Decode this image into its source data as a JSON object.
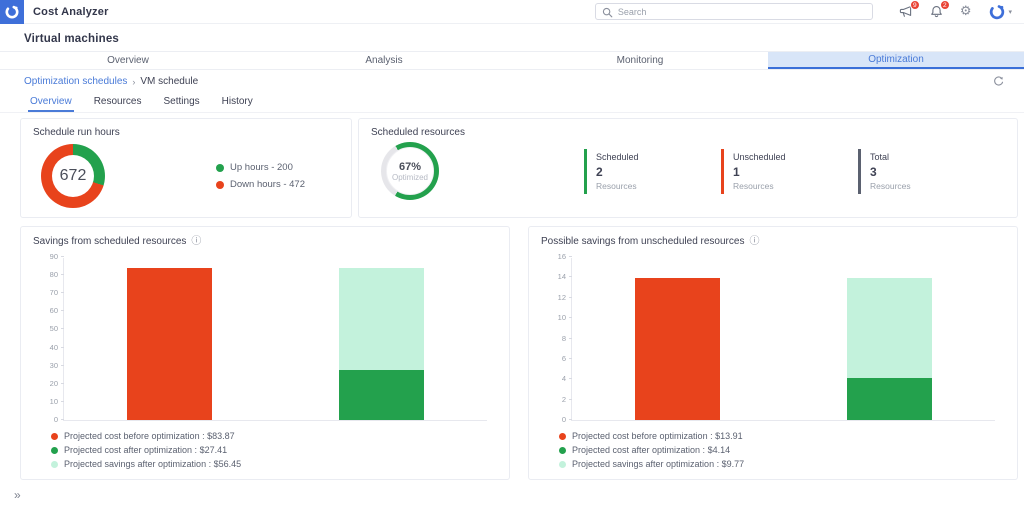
{
  "header": {
    "app_title": "Cost Analyzer",
    "search_placeholder": "Search",
    "badges": {
      "announcements": "9",
      "notifications": "2"
    }
  },
  "page_title": "Virtual machines",
  "main_tabs": [
    {
      "label": "Overview",
      "active": false
    },
    {
      "label": "Analysis",
      "active": false
    },
    {
      "label": "Monitoring",
      "active": false
    },
    {
      "label": "Optimization",
      "active": true
    }
  ],
  "breadcrumb": {
    "parent": "Optimization schedules",
    "separator": "›",
    "current": "VM schedule"
  },
  "sub_tabs": [
    {
      "label": "Overview",
      "active": true
    },
    {
      "label": "Resources",
      "active": false
    },
    {
      "label": "Settings",
      "active": false
    },
    {
      "label": "History",
      "active": false
    }
  ],
  "schedule_run_hours": {
    "title": "Schedule run hours",
    "total_hours": "672",
    "up_hours": 200,
    "down_hours": 472,
    "legend": [
      {
        "label": "Up hours - 200",
        "color": "#23a14d"
      },
      {
        "label": "Down hours - 472",
        "color": "#e8431c"
      }
    ]
  },
  "scheduled_resources": {
    "title": "Scheduled resources",
    "optimized_percent": 67,
    "percent_text": "67%",
    "percent_caption": "Optimized",
    "stats": [
      {
        "label": "Scheduled",
        "value": "2",
        "caption": "Resources",
        "color": "#23a14d"
      },
      {
        "label": "Unscheduled",
        "value": "1",
        "caption": "Resources",
        "color": "#e8431c"
      },
      {
        "label": "Total",
        "value": "3",
        "caption": "Resources",
        "color": "#5b6170"
      }
    ]
  },
  "chart_data": [
    {
      "type": "bar",
      "stacked": true,
      "title": "Savings from scheduled resources",
      "categories": [
        "",
        ""
      ],
      "series": [
        {
          "name": "Projected cost before optimization",
          "color": "#e8431c",
          "values": [
            83.87,
            0
          ]
        },
        {
          "name": "Projected cost after optimization",
          "color": "#23a14d",
          "values": [
            0,
            27.41
          ]
        },
        {
          "name": "Projected savings after optimization",
          "color": "#c3f2dc",
          "values": [
            0,
            56.45
          ]
        }
      ],
      "legend": [
        {
          "label": "Projected cost before optimization : $83.87",
          "color": "#e8431c"
        },
        {
          "label": "Projected cost after optimization : $27.41",
          "color": "#23a14d"
        },
        {
          "label": "Projected savings after optimization : $56.45",
          "color": "#c3f2dc"
        }
      ],
      "ylim": [
        0,
        90
      ],
      "ytick_step": 10,
      "grid": false,
      "legend_position": "bottom"
    },
    {
      "type": "bar",
      "stacked": true,
      "title": "Possible savings from unscheduled resources",
      "categories": [
        "",
        ""
      ],
      "series": [
        {
          "name": "Projected cost before optimization",
          "color": "#e8431c",
          "values": [
            13.91,
            0
          ]
        },
        {
          "name": "Projected cost after optimization",
          "color": "#23a14d",
          "values": [
            0,
            4.14
          ]
        },
        {
          "name": "Projected savings after optimization",
          "color": "#c3f2dc",
          "values": [
            0,
            9.77
          ]
        }
      ],
      "legend": [
        {
          "label": "Projected cost before optimization : $13.91",
          "color": "#e8431c"
        },
        {
          "label": "Projected cost after optimization : $4.14",
          "color": "#23a14d"
        },
        {
          "label": "Projected savings after optimization : $9.77",
          "color": "#c3f2dc"
        }
      ],
      "ylim": [
        0,
        16
      ],
      "ytick_step": 2,
      "grid": false,
      "legend_position": "bottom"
    }
  ],
  "footer": {
    "expand_symbol": "»"
  },
  "colors": {
    "accent_blue": "#4a7bd8",
    "tab_active_bg": "#d8e5f8",
    "red": "#e8431c",
    "green": "#23a14d",
    "mint": "#c3f2dc",
    "ring_gray": "#e6e6ea",
    "badge_red": "#e94335"
  }
}
